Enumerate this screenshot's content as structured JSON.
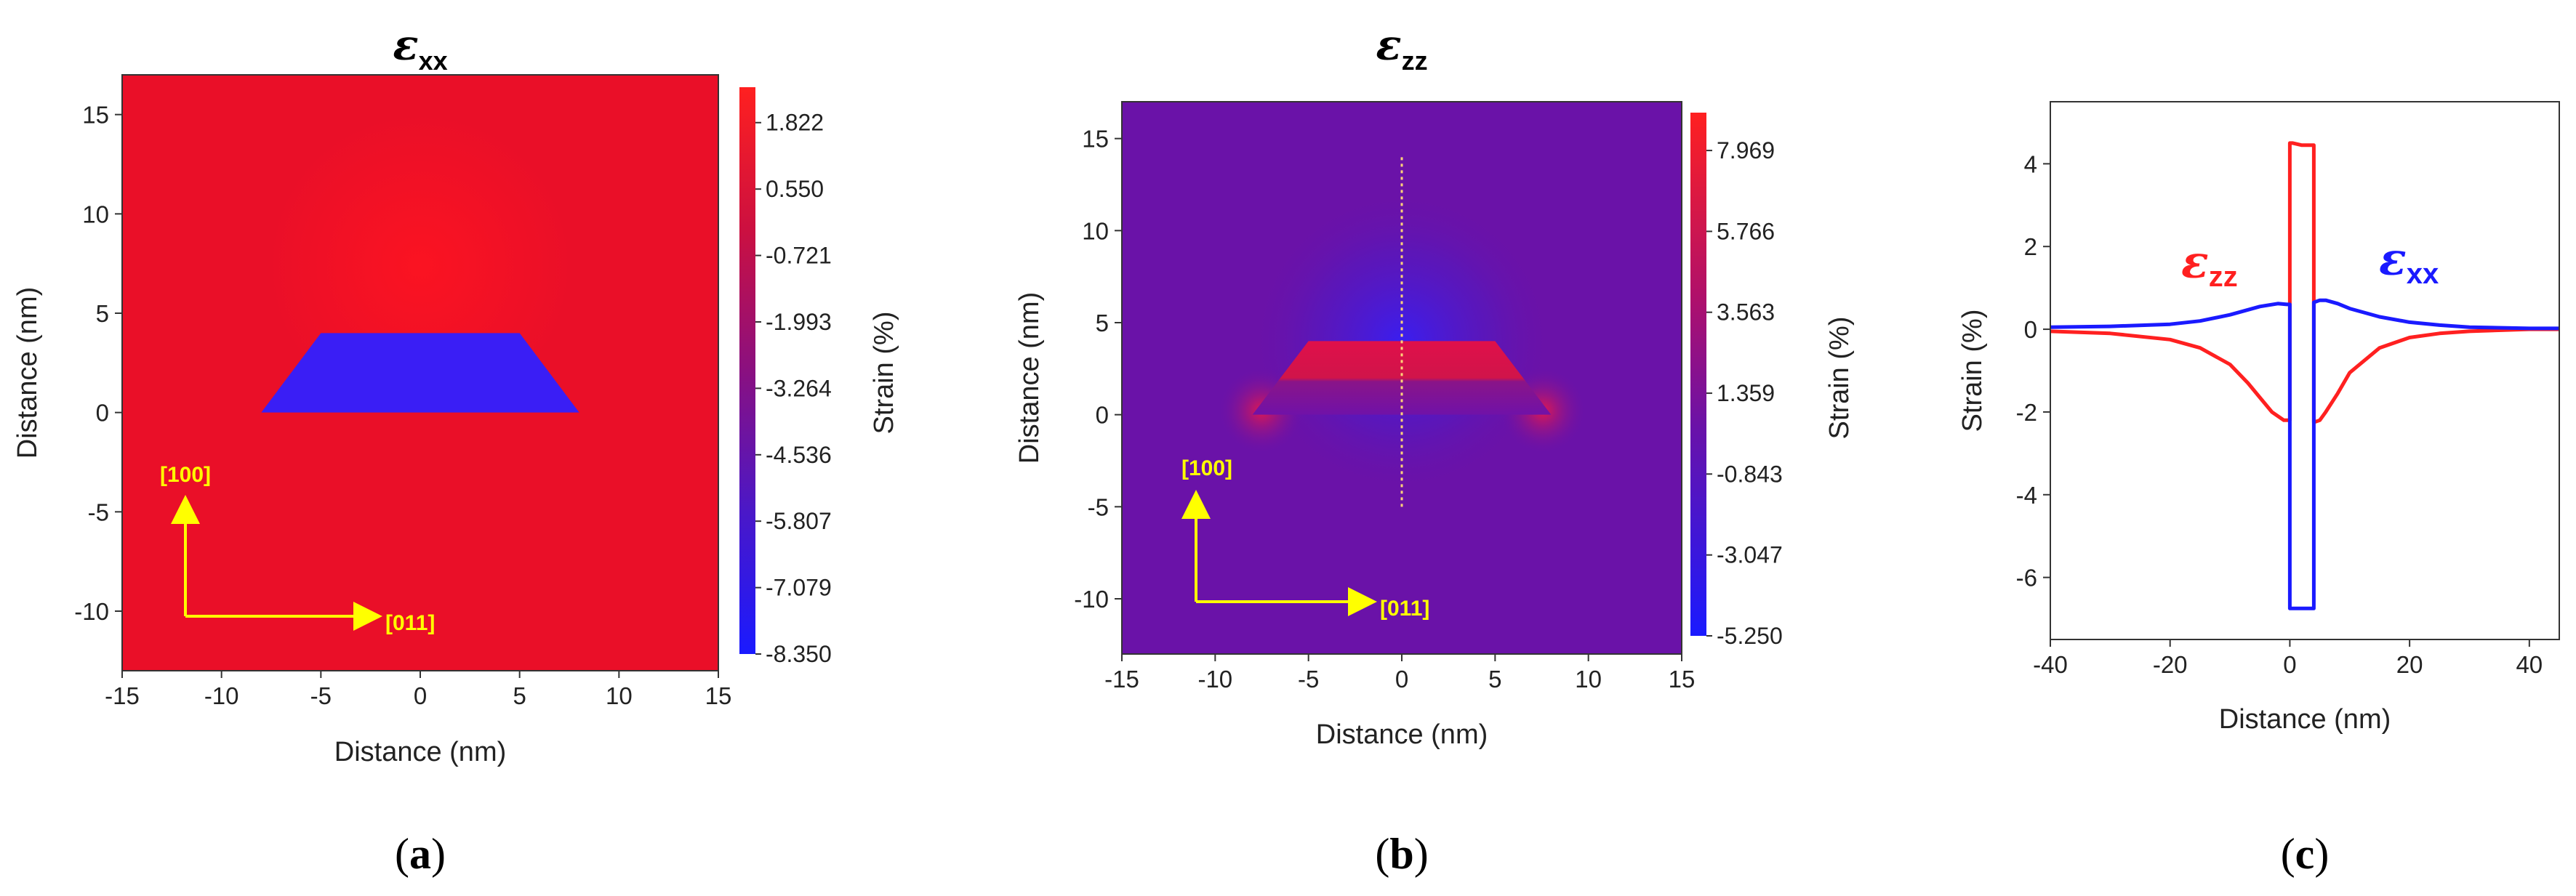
{
  "chart_data": [
    {
      "type": "heatmap",
      "panel_label": "(a)",
      "title": {
        "symbol": "ε",
        "subscript": "xx"
      },
      "xlabel": "Distance (nm)",
      "ylabel": "Distance (nm)",
      "xlim": [
        -15,
        15
      ],
      "ylim": [
        -13,
        17
      ],
      "xticks": [
        -15,
        -10,
        -5,
        0,
        5,
        10,
        15
      ],
      "yticks": [
        -10,
        -5,
        0,
        5,
        10,
        15
      ],
      "colorbar": {
        "label": "Strain (%)",
        "range": [
          -8.35,
          2.5
        ],
        "ticks": [
          "1.822",
          "0.550",
          "-0.721",
          "-1.993",
          "-3.264",
          "-4.536",
          "-5.807",
          "-7.079",
          "-8.350"
        ],
        "tick_values": [
          1.822,
          0.55,
          -0.721,
          -1.993,
          -3.264,
          -4.536,
          -5.807,
          -7.079,
          -8.35
        ]
      },
      "quantum_dot": {
        "bottom_x": [
          -8,
          8
        ],
        "top_x": [
          -5,
          5
        ],
        "y": [
          0,
          4
        ]
      },
      "background_strain": 1.2,
      "dot_strain": -7.5,
      "directions": {
        "up": "[100]",
        "right": "[011]"
      }
    },
    {
      "type": "heatmap",
      "panel_label": "(b)",
      "title": {
        "symbol": "ε",
        "subscript": "zz"
      },
      "xlabel": "Distance (nm)",
      "ylabel": "Distance (nm)",
      "xlim": [
        -15,
        15
      ],
      "ylim": [
        -13,
        17
      ],
      "xticks": [
        -15,
        -10,
        -5,
        0,
        5,
        10,
        15
      ],
      "yticks": [
        -10,
        -5,
        0,
        5,
        10,
        15
      ],
      "colorbar": {
        "label": "Strain (%)",
        "range": [
          -5.25,
          9.0
        ],
        "ticks": [
          "7.969",
          "5.766",
          "3.563",
          "1.359",
          "-0.843",
          "-3.047",
          "-5.250"
        ],
        "tick_values": [
          7.969,
          5.766,
          3.563,
          1.359,
          -0.843,
          -3.047,
          -5.25
        ]
      },
      "quantum_dot": {
        "bottom_x": [
          -8,
          8
        ],
        "top_x": [
          -5,
          5
        ],
        "y": [
          0,
          4
        ]
      },
      "line_scan": {
        "x": 0,
        "y": [
          -5,
          14
        ]
      },
      "directions": {
        "up": "[100]",
        "right": "[011]"
      }
    },
    {
      "type": "line",
      "panel_label": "(c)",
      "xlabel": "Distance (nm)",
      "ylabel": "Strain (%)",
      "xlim": [
        -40,
        45
      ],
      "ylim": [
        -7.5,
        5.5
      ],
      "xticks": [
        -40,
        -20,
        0,
        20,
        40
      ],
      "yticks": [
        -6,
        -4,
        -2,
        0,
        2,
        4
      ],
      "series": [
        {
          "name": "ε_zz",
          "symbol": "ε",
          "subscript": "zz",
          "color": "#ff2020",
          "x": [
            -40,
            -30,
            -20,
            -15,
            -10,
            -7,
            -5,
            -3,
            -1,
            0,
            0,
            0.5,
            2,
            4,
            4,
            5,
            6,
            8,
            10,
            15,
            20,
            25,
            30,
            40,
            45
          ],
          "y": [
            -0.05,
            -0.1,
            -0.25,
            -0.45,
            -0.85,
            -1.3,
            -1.65,
            -2.0,
            -2.2,
            -2.2,
            4.5,
            4.5,
            4.45,
            4.45,
            -2.25,
            -2.2,
            -2.0,
            -1.55,
            -1.05,
            -0.45,
            -0.2,
            -0.1,
            -0.05,
            0,
            0
          ]
        },
        {
          "name": "ε_xx",
          "symbol": "ε",
          "subscript": "xx",
          "color": "#1a1aff",
          "x": [
            -40,
            -30,
            -20,
            -15,
            -10,
            -5,
            -2,
            -0.5,
            0,
            0,
            0.5,
            4,
            4,
            5,
            6,
            8,
            10,
            15,
            20,
            25,
            30,
            40,
            45
          ],
          "y": [
            0.05,
            0.07,
            0.12,
            0.2,
            0.35,
            0.55,
            0.62,
            0.6,
            0.6,
            -6.75,
            -6.75,
            -6.75,
            0.65,
            0.7,
            0.7,
            0.62,
            0.5,
            0.3,
            0.17,
            0.1,
            0.05,
            0.02,
            0.02
          ]
        }
      ]
    }
  ]
}
